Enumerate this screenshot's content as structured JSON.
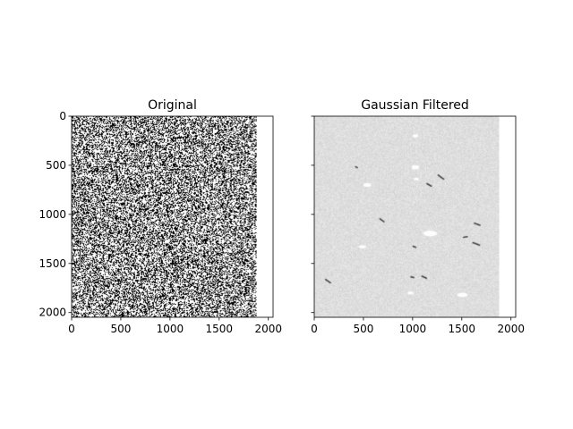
{
  "chart_data": [
    {
      "type": "heatmap",
      "title": "Original",
      "xlabel": "",
      "ylabel": "",
      "xlim": [
        0,
        2048
      ],
      "ylim": [
        2048,
        0
      ],
      "image_width": 1880,
      "image_height": 2048,
      "colormap": "gray",
      "x_ticks": [
        0,
        500,
        1000,
        1500,
        2000
      ],
      "y_ticks": [
        0,
        500,
        1000,
        1500,
        2000
      ],
      "x_tick_labels": [
        "0",
        "500",
        "1000",
        "1500",
        "2000"
      ],
      "y_tick_labels": [
        "0",
        "500",
        "1000",
        "1500",
        "2000"
      ],
      "content": "binary salt-and-pepper noise"
    },
    {
      "type": "heatmap",
      "title": "Gaussian Filtered",
      "xlabel": "",
      "ylabel": "",
      "xlim": [
        0,
        2048
      ],
      "ylim": [
        2048,
        0
      ],
      "image_width": 1880,
      "image_height": 2048,
      "colormap": "gray",
      "sharey": true,
      "x_ticks": [
        0,
        500,
        1000,
        1500,
        2000
      ],
      "y_ticks": [
        0,
        500,
        1000,
        1500,
        2000
      ],
      "x_tick_labels": [
        "0",
        "500",
        "1000",
        "1500",
        "2000"
      ],
      "y_tick_labels": [],
      "content": "light gray smoothed field with sparse streaks",
      "dark_streaks": [
        {
          "x": 1290,
          "y": 620,
          "len": 70,
          "angle": 35
        },
        {
          "x": 1170,
          "y": 700,
          "len": 50,
          "angle": 30
        },
        {
          "x": 690,
          "y": 1060,
          "len": 50,
          "angle": 35
        },
        {
          "x": 1660,
          "y": 1100,
          "len": 60,
          "angle": 20
        },
        {
          "x": 1650,
          "y": 1300,
          "len": 70,
          "angle": 20
        },
        {
          "x": 140,
          "y": 1680,
          "len": 60,
          "angle": 35
        },
        {
          "x": 1120,
          "y": 1640,
          "len": 50,
          "angle": 25
        },
        {
          "x": 1000,
          "y": 1640,
          "len": 30,
          "angle": 10
        },
        {
          "x": 1540,
          "y": 1230,
          "len": 40,
          "angle": -10
        },
        {
          "x": 430,
          "y": 520,
          "len": 20,
          "angle": 30
        },
        {
          "x": 1020,
          "y": 1330,
          "len": 30,
          "angle": 20
        }
      ],
      "bright_spots": [
        {
          "x": 1180,
          "y": 1195,
          "rx": 70,
          "ry": 30
        },
        {
          "x": 1510,
          "y": 1820,
          "rx": 55,
          "ry": 22
        },
        {
          "x": 1030,
          "y": 520,
          "rx": 40,
          "ry": 22
        },
        {
          "x": 540,
          "y": 700,
          "rx": 40,
          "ry": 20
        },
        {
          "x": 490,
          "y": 1330,
          "rx": 38,
          "ry": 16
        },
        {
          "x": 980,
          "y": 1800,
          "rx": 30,
          "ry": 16
        },
        {
          "x": 1040,
          "y": 640,
          "rx": 28,
          "ry": 14
        },
        {
          "x": 1030,
          "y": 200,
          "rx": 30,
          "ry": 16
        }
      ]
    }
  ]
}
